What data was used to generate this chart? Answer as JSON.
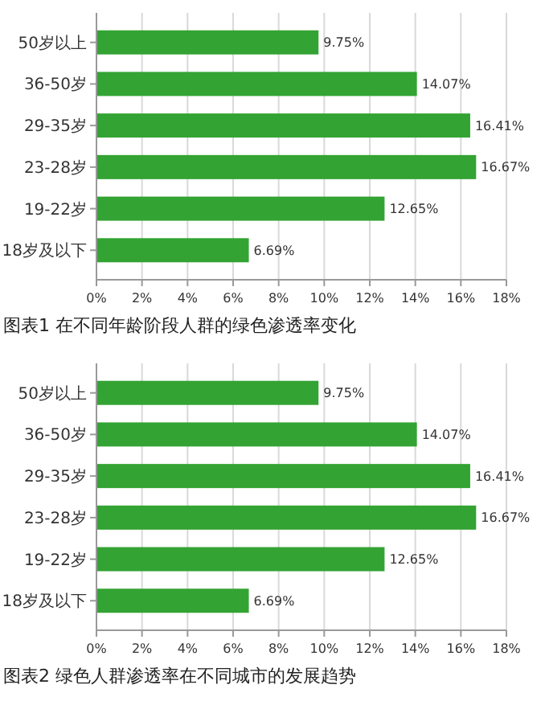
{
  "chart_data": [
    {
      "type": "bar",
      "orientation": "horizontal",
      "title": "图表1 在不同年龄阶段人群的绿色渗透率变化",
      "categories": [
        "50岁以上",
        "36-50岁",
        "29-35岁",
        "23-28岁",
        "19-22岁",
        "18岁及以下"
      ],
      "values": [
        9.75,
        14.07,
        16.41,
        16.67,
        12.65,
        6.69
      ],
      "value_labels": [
        "9.75%",
        "14.07%",
        "16.41%",
        "16.67%",
        "12.65%",
        "6.69%"
      ],
      "color": "#33a333",
      "xlim": [
        0,
        18
      ],
      "xticks": [
        {
          "value": 0,
          "label": "0%"
        },
        {
          "value": 2,
          "label": "2%"
        },
        {
          "value": 4,
          "label": "4%"
        },
        {
          "value": 6,
          "label": "6%"
        },
        {
          "value": 8,
          "label": "8%"
        },
        {
          "value": 10,
          "label": "10%"
        },
        {
          "value": 12,
          "label": "12%"
        },
        {
          "value": 14,
          "label": "14%"
        },
        {
          "value": 16,
          "label": "16%"
        },
        {
          "value": 18,
          "label": "18%"
        }
      ],
      "grid": "x"
    },
    {
      "type": "bar",
      "orientation": "horizontal",
      "title": "图表2 绿色人群渗透率在不同城市的发展趋势",
      "categories": [
        "50岁以上",
        "36-50岁",
        "29-35岁",
        "23-28岁",
        "19-22岁",
        "18岁及以下"
      ],
      "values": [
        9.75,
        14.07,
        16.41,
        16.67,
        12.65,
        6.69
      ],
      "value_labels": [
        "9.75%",
        "14.07%",
        "16.41%",
        "16.67%",
        "12.65%",
        "6.69%"
      ],
      "color": "#33a333",
      "xlim": [
        0,
        18
      ],
      "xticks": [
        {
          "value": 0,
          "label": "0%"
        },
        {
          "value": 2,
          "label": "2%"
        },
        {
          "value": 4,
          "label": "4%"
        },
        {
          "value": 6,
          "label": "6%"
        },
        {
          "value": 8,
          "label": "8%"
        },
        {
          "value": 10,
          "label": "10%"
        },
        {
          "value": 12,
          "label": "12%"
        },
        {
          "value": 14,
          "label": "14%"
        },
        {
          "value": 16,
          "label": "16%"
        },
        {
          "value": 18,
          "label": "18%"
        }
      ],
      "grid": "x"
    }
  ]
}
